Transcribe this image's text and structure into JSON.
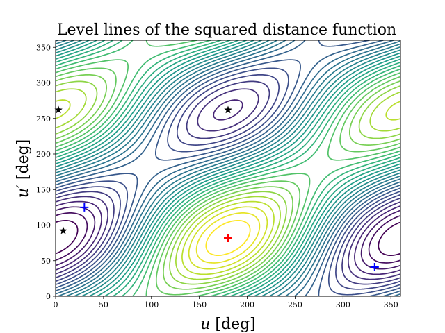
{
  "chart_data": {
    "type": "contour",
    "title": "Level lines of the squared distance function",
    "xlabel_var": "u",
    "xlabel_unit": "[deg]",
    "ylabel_var": "u′",
    "ylabel_unit": "[deg]",
    "xlim": [
      0,
      360
    ],
    "ylim": [
      0,
      360
    ],
    "xticks": [
      0,
      50,
      100,
      150,
      200,
      250,
      300,
      350
    ],
    "yticks": [
      0,
      50,
      100,
      150,
      200,
      250,
      300,
      350
    ],
    "grid": false,
    "colormap": "viridis",
    "markers": [
      {
        "kind": "min",
        "symbol": "+",
        "color": "#ff0000",
        "x": 180,
        "y": 82
      },
      {
        "kind": "critical",
        "symbol": "+",
        "color": "#0000ff",
        "x": 30,
        "y": 125
      },
      {
        "kind": "critical",
        "symbol": "+",
        "color": "#0000ff",
        "x": 333,
        "y": 41
      },
      {
        "kind": "saddle",
        "symbol": "star",
        "color": "#000000",
        "x": 3,
        "y": 262
      },
      {
        "kind": "saddle",
        "symbol": "star",
        "color": "#000000",
        "x": 180,
        "y": 262
      },
      {
        "kind": "saddle",
        "symbol": "star",
        "color": "#000000",
        "x": 8,
        "y": 92
      }
    ]
  }
}
